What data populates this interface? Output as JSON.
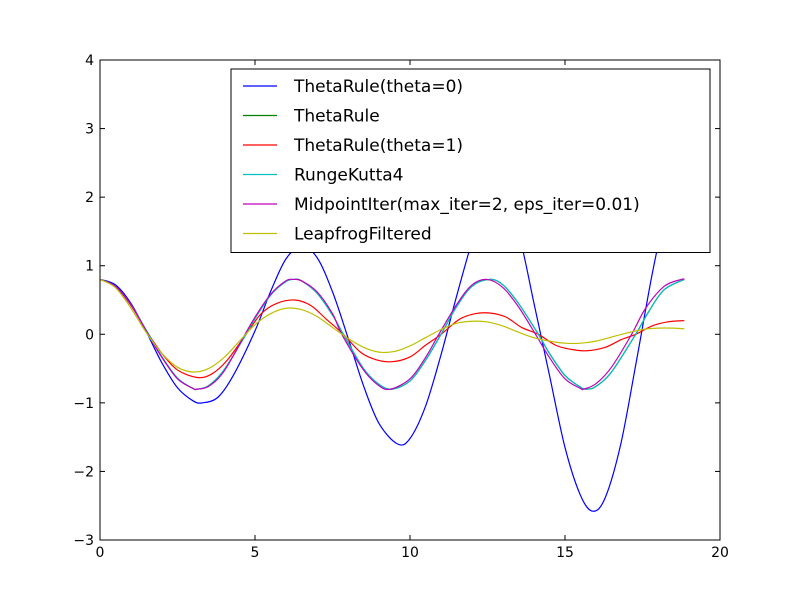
{
  "chart_data": {
    "type": "line",
    "title": "",
    "xlabel": "",
    "ylabel": "",
    "xlim": [
      0,
      20
    ],
    "ylim": [
      -3,
      4
    ],
    "xticks": [
      0,
      5,
      10,
      15,
      20
    ],
    "yticks": [
      -3,
      -2,
      -1,
      0,
      1,
      2,
      3,
      4
    ],
    "x_tick_labels": [
      "0",
      "5",
      "10",
      "15",
      "20"
    ],
    "y_tick_labels": [
      "−3",
      "−2",
      "−1",
      "0",
      "1",
      "2",
      "3",
      "4"
    ],
    "grid": false,
    "legend_position": "upper-right",
    "x_end": 18.85,
    "series": [
      {
        "name": "ThetaRule(theta=0)",
        "color": "#0000ff",
        "points": [
          [
            0,
            0.8
          ],
          [
            0.5,
            0.72
          ],
          [
            1,
            0.45
          ],
          [
            1.5,
            0.03
          ],
          [
            2,
            -0.42
          ],
          [
            2.5,
            -0.78
          ],
          [
            3,
            -0.97
          ],
          [
            3.3,
            -1.0
          ],
          [
            3.8,
            -0.92
          ],
          [
            4.3,
            -0.6
          ],
          [
            5,
            0.05
          ],
          [
            5.5,
            0.62
          ],
          [
            6,
            1.1
          ],
          [
            6.5,
            1.28
          ],
          [
            7,
            1.12
          ],
          [
            7.5,
            0.62
          ],
          [
            8,
            -0.05
          ],
          [
            8.5,
            -0.75
          ],
          [
            9,
            -1.3
          ],
          [
            9.6,
            -1.6
          ],
          [
            10,
            -1.52
          ],
          [
            10.5,
            -1.05
          ],
          [
            11,
            -0.3
          ],
          [
            11.5,
            0.55
          ],
          [
            12,
            1.35
          ],
          [
            12.4,
            1.85
          ],
          [
            12.8,
            2.05
          ],
          [
            13.2,
            1.9
          ],
          [
            13.6,
            1.3
          ],
          [
            14,
            0.45
          ],
          [
            14.5,
            -0.6
          ],
          [
            15,
            -1.65
          ],
          [
            15.5,
            -2.35
          ],
          [
            15.9,
            -2.58
          ],
          [
            16.3,
            -2.38
          ],
          [
            16.8,
            -1.6
          ],
          [
            17.3,
            -0.4
          ],
          [
            17.8,
            0.85
          ],
          [
            18.2,
            1.7
          ],
          [
            18.5,
            2.2
          ],
          [
            18.85,
            2.6
          ]
        ]
      },
      {
        "name": "ThetaRule",
        "color": "#008000",
        "points": [
          [
            0,
            0.8
          ],
          [
            0.5,
            0.7
          ],
          [
            1,
            0.43
          ],
          [
            1.57,
            0.0
          ],
          [
            2,
            -0.33
          ],
          [
            2.5,
            -0.64
          ],
          [
            3,
            -0.79
          ],
          [
            3.14,
            -0.8
          ],
          [
            3.5,
            -0.75
          ],
          [
            4,
            -0.52
          ],
          [
            4.71,
            0.0
          ],
          [
            5,
            0.23
          ],
          [
            5.5,
            0.57
          ],
          [
            6,
            0.77
          ],
          [
            6.28,
            0.8
          ],
          [
            6.5,
            0.78
          ],
          [
            7,
            0.6
          ],
          [
            7.5,
            0.28
          ],
          [
            7.85,
            0.0
          ],
          [
            8.5,
            -0.5
          ],
          [
            9,
            -0.73
          ],
          [
            9.42,
            -0.8
          ],
          [
            10,
            -0.68
          ],
          [
            10.5,
            -0.38
          ],
          [
            11,
            0.0
          ],
          [
            11.5,
            0.4
          ],
          [
            12,
            0.7
          ],
          [
            12.57,
            0.8
          ],
          [
            13,
            0.72
          ],
          [
            13.5,
            0.45
          ],
          [
            14.14,
            0.0
          ],
          [
            14.5,
            -0.28
          ],
          [
            15,
            -0.6
          ],
          [
            15.5,
            -0.77
          ],
          [
            15.71,
            -0.8
          ],
          [
            16,
            -0.76
          ],
          [
            16.5,
            -0.55
          ],
          [
            17.28,
            0.0
          ],
          [
            17.7,
            0.33
          ],
          [
            18.2,
            0.65
          ],
          [
            18.85,
            0.8
          ]
        ]
      },
      {
        "name": "ThetaRule(theta=1)",
        "color": "#ff0000",
        "points": [
          [
            0,
            0.8
          ],
          [
            0.5,
            0.69
          ],
          [
            1,
            0.42
          ],
          [
            1.57,
            0.0
          ],
          [
            2,
            -0.28
          ],
          [
            2.5,
            -0.52
          ],
          [
            3.14,
            -0.63
          ],
          [
            3.6,
            -0.58
          ],
          [
            4.1,
            -0.38
          ],
          [
            4.71,
            0.0
          ],
          [
            5.2,
            0.3
          ],
          [
            5.7,
            0.45
          ],
          [
            6.28,
            0.5
          ],
          [
            6.8,
            0.42
          ],
          [
            7.3,
            0.22
          ],
          [
            7.85,
            0.0
          ],
          [
            8.4,
            -0.26
          ],
          [
            8.9,
            -0.37
          ],
          [
            9.42,
            -0.4
          ],
          [
            10,
            -0.33
          ],
          [
            10.5,
            -0.16
          ],
          [
            11,
            0.0
          ],
          [
            11.6,
            0.22
          ],
          [
            12.1,
            0.3
          ],
          [
            12.57,
            0.31
          ],
          [
            13.1,
            0.25
          ],
          [
            13.6,
            0.1
          ],
          [
            14.14,
            0.0
          ],
          [
            14.7,
            -0.16
          ],
          [
            15.2,
            -0.22
          ],
          [
            15.71,
            -0.24
          ],
          [
            16.3,
            -0.19
          ],
          [
            16.8,
            -0.08
          ],
          [
            17.28,
            0.0
          ],
          [
            17.8,
            0.12
          ],
          [
            18.3,
            0.18
          ],
          [
            18.85,
            0.2
          ]
        ]
      },
      {
        "name": "RungeKutta4",
        "color": "#00bfbf",
        "points": [
          [
            0,
            0.8
          ],
          [
            0.5,
            0.7
          ],
          [
            1,
            0.43
          ],
          [
            1.57,
            0.0
          ],
          [
            2,
            -0.33
          ],
          [
            2.5,
            -0.64
          ],
          [
            3,
            -0.79
          ],
          [
            3.14,
            -0.8
          ],
          [
            3.5,
            -0.75
          ],
          [
            4,
            -0.52
          ],
          [
            4.71,
            0.0
          ],
          [
            5,
            0.23
          ],
          [
            5.5,
            0.57
          ],
          [
            6,
            0.77
          ],
          [
            6.28,
            0.8
          ],
          [
            6.5,
            0.78
          ],
          [
            7,
            0.6
          ],
          [
            7.5,
            0.28
          ],
          [
            7.85,
            0.0
          ],
          [
            8.5,
            -0.5
          ],
          [
            9,
            -0.73
          ],
          [
            9.42,
            -0.8
          ],
          [
            10,
            -0.68
          ],
          [
            10.5,
            -0.38
          ],
          [
            11,
            0.0
          ],
          [
            11.5,
            0.4
          ],
          [
            12,
            0.7
          ],
          [
            12.57,
            0.8
          ],
          [
            13,
            0.72
          ],
          [
            13.5,
            0.45
          ],
          [
            14.14,
            0.0
          ],
          [
            14.5,
            -0.28
          ],
          [
            15,
            -0.6
          ],
          [
            15.5,
            -0.77
          ],
          [
            15.71,
            -0.8
          ],
          [
            16,
            -0.76
          ],
          [
            16.5,
            -0.55
          ],
          [
            17.28,
            0.0
          ],
          [
            17.7,
            0.33
          ],
          [
            18.2,
            0.65
          ],
          [
            18.85,
            0.8
          ]
        ]
      },
      {
        "name": "MidpointIter(max_iter=2, eps_iter=0.01)",
        "color": "#bf00bf",
        "points": [
          [
            0,
            0.8
          ],
          [
            0.5,
            0.7
          ],
          [
            1,
            0.43
          ],
          [
            1.55,
            0.0
          ],
          [
            2,
            -0.34
          ],
          [
            2.5,
            -0.65
          ],
          [
            3,
            -0.79
          ],
          [
            3.12,
            -0.8
          ],
          [
            3.5,
            -0.76
          ],
          [
            4,
            -0.54
          ],
          [
            4.68,
            0.0
          ],
          [
            5,
            0.25
          ],
          [
            5.5,
            0.58
          ],
          [
            6,
            0.78
          ],
          [
            6.24,
            0.8
          ],
          [
            6.5,
            0.78
          ],
          [
            7,
            0.62
          ],
          [
            7.5,
            0.3
          ],
          [
            7.8,
            0.0
          ],
          [
            8.5,
            -0.52
          ],
          [
            9,
            -0.75
          ],
          [
            9.37,
            -0.8
          ],
          [
            10,
            -0.65
          ],
          [
            10.5,
            -0.34
          ],
          [
            10.93,
            0.0
          ],
          [
            11.5,
            0.43
          ],
          [
            12,
            0.72
          ],
          [
            12.49,
            0.8
          ],
          [
            13,
            0.68
          ],
          [
            13.5,
            0.4
          ],
          [
            14.05,
            0.0
          ],
          [
            14.5,
            -0.34
          ],
          [
            15,
            -0.65
          ],
          [
            15.5,
            -0.79
          ],
          [
            15.6,
            -0.8
          ],
          [
            16,
            -0.72
          ],
          [
            16.5,
            -0.48
          ],
          [
            17.15,
            0.0
          ],
          [
            17.6,
            0.38
          ],
          [
            18.2,
            0.7
          ],
          [
            18.75,
            0.8
          ],
          [
            18.85,
            0.8
          ]
        ]
      },
      {
        "name": "LeapfrogFiltered",
        "color": "#bfbf00",
        "points": [
          [
            0,
            0.8
          ],
          [
            0.5,
            0.68
          ],
          [
            1,
            0.38
          ],
          [
            1.5,
            0.02
          ],
          [
            2,
            -0.28
          ],
          [
            2.5,
            -0.48
          ],
          [
            3,
            -0.55
          ],
          [
            3.5,
            -0.5
          ],
          [
            4,
            -0.34
          ],
          [
            4.5,
            -0.1
          ],
          [
            5,
            0.14
          ],
          [
            5.5,
            0.3
          ],
          [
            6,
            0.38
          ],
          [
            6.5,
            0.36
          ],
          [
            7,
            0.26
          ],
          [
            7.5,
            0.1
          ],
          [
            8,
            -0.06
          ],
          [
            8.5,
            -0.19
          ],
          [
            9,
            -0.26
          ],
          [
            9.5,
            -0.25
          ],
          [
            10,
            -0.17
          ],
          [
            10.5,
            -0.05
          ],
          [
            11,
            0.07
          ],
          [
            11.5,
            0.16
          ],
          [
            12,
            0.19
          ],
          [
            12.5,
            0.18
          ],
          [
            13,
            0.12
          ],
          [
            13.5,
            0.03
          ],
          [
            14,
            -0.05
          ],
          [
            14.5,
            -0.1
          ],
          [
            15,
            -0.13
          ],
          [
            15.5,
            -0.13
          ],
          [
            16,
            -0.1
          ],
          [
            16.5,
            -0.04
          ],
          [
            17,
            0.02
          ],
          [
            17.5,
            0.07
          ],
          [
            18,
            0.09
          ],
          [
            18.5,
            0.09
          ],
          [
            18.85,
            0.08
          ]
        ]
      }
    ]
  }
}
